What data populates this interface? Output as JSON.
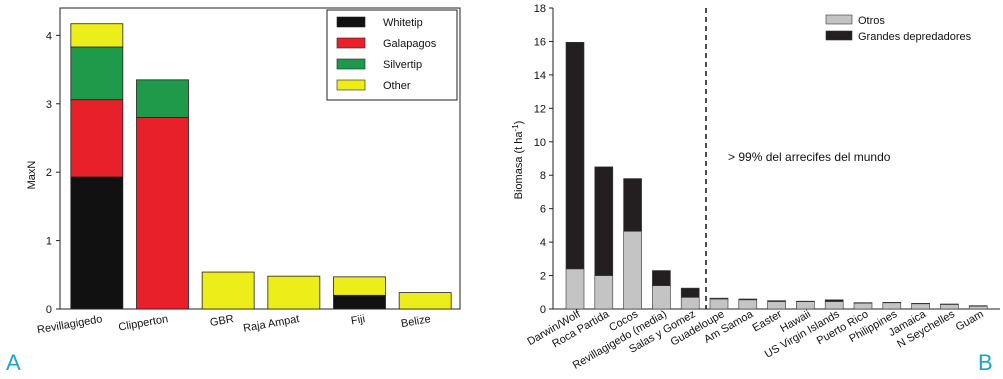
{
  "panels": {
    "a_letter": "A",
    "b_letter": "B"
  },
  "chart_data": [
    {
      "type": "bar",
      "stacked": true,
      "panel": "A",
      "categories": [
        "Revillagigedo",
        "Clipperton",
        "GBR",
        "Raja Ampat",
        "Fiji",
        "Belize"
      ],
      "series": [
        {
          "name": "Whitetip",
          "color": "#111111",
          "values": [
            1.93,
            0,
            0,
            0,
            0.2,
            0
          ]
        },
        {
          "name": "Galapagos",
          "color": "#e8202a",
          "values": [
            1.13,
            2.8,
            0,
            0,
            0,
            0
          ]
        },
        {
          "name": "Silvertip",
          "color": "#1e9a4a",
          "values": [
            0.77,
            0.55,
            0,
            0,
            0,
            0
          ]
        },
        {
          "name": "Other",
          "color": "#eded1a",
          "values": [
            0.34,
            0,
            0.54,
            0.48,
            0.27,
            0.24
          ]
        }
      ],
      "ylabel": "MaxN",
      "xlabel": "",
      "ylim": [
        0,
        4.4
      ],
      "yticks": [
        "0",
        "1",
        "2",
        "3",
        "4"
      ],
      "legend": "top-right",
      "grid": false
    },
    {
      "type": "bar",
      "stacked": true,
      "panel": "B",
      "categories": [
        "Darwin/Wolf",
        "Roca Partida",
        "Cocos",
        "Revillagigedo (media)",
        "Salas y Gomez",
        "Guadeloupe",
        "Am Samoa",
        "Easter",
        "Hawaii",
        "US Virgin Islands",
        "Puerto Rico",
        "Philippines",
        "Jamaica",
        "N Seychelles",
        "Guam"
      ],
      "series": [
        {
          "name": "Otros",
          "color": "#c4c4c4",
          "values": [
            2.4,
            2.0,
            4.65,
            1.4,
            0.7,
            0.6,
            0.55,
            0.45,
            0.45,
            0.45,
            0.35,
            0.38,
            0.32,
            0.28,
            0.18
          ]
        },
        {
          "name": "Grandes depredadores",
          "color": "#231f20",
          "values": [
            13.55,
            6.5,
            3.15,
            0.9,
            0.55,
            0.05,
            0.05,
            0.05,
            0.02,
            0.1,
            0.03,
            0.02,
            0.02,
            0.02,
            0.02
          ]
        }
      ],
      "ylabel": "Biomasa (t ha-1)",
      "ylabel_main": "Biomasa (t ha",
      "ylabel_sup": "-1",
      "ylabel_end": ")",
      "xlabel": "",
      "ylim": [
        0,
        18
      ],
      "yticks": [
        "0",
        "2",
        "4",
        "6",
        "8",
        "10",
        "12",
        "14",
        "16",
        "18"
      ],
      "annotation": "> 99% del arrecifes del mundo",
      "legend": "top-right",
      "grid": false
    }
  ]
}
